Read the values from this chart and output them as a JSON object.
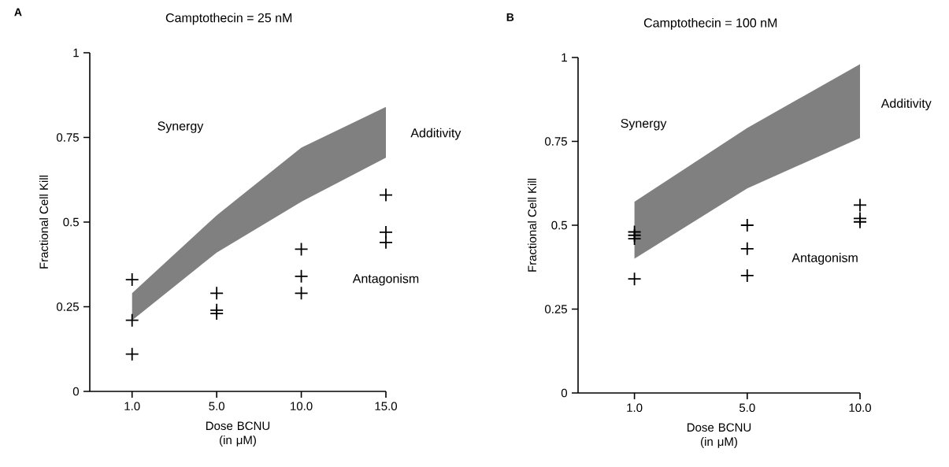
{
  "chart_data": [
    {
      "type": "scatter",
      "title": "A",
      "subtitle": "Camptothecin = 25 nM",
      "xlabel": "Dose BCNU (in μM)",
      "ylabel": "Fractional Cell Kill",
      "categories": [
        "1.0",
        "5.0",
        "10.0",
        "15.0"
      ],
      "ylim": [
        0,
        1
      ],
      "yticks": [
        0,
        0.25,
        0.5,
        0.75,
        1
      ],
      "grid": false,
      "series": [
        {
          "type": "line",
          "color": "#808080",
          "values": [
            null,
            null,
            null,
            null
          ],
          "lower": [
            0.21,
            0.41,
            0.56,
            0.69
          ],
          "upper": [
            0.29,
            0.52,
            0.72,
            0.84
          ]
        },
        {
          "type": "scatter",
          "marker": "cross",
          "color": "#000000",
          "x": [
            "1.0",
            "1.0",
            "1.0",
            "5.0",
            "5.0",
            "5.0",
            "10.0",
            "10.0",
            "10.0",
            "15.0",
            "15.0",
            "15.0"
          ],
          "values": [
            0.33,
            0.21,
            0.11,
            0.29,
            0.24,
            0.23,
            0.42,
            0.34,
            0.29,
            0.58,
            0.47,
            0.44
          ]
        }
      ],
      "annotations": [
        "Synergy",
        "Additivity",
        "Antagonism"
      ]
    },
    {
      "type": "scatter",
      "title": "B",
      "subtitle": "Camptothecin = 100 nM",
      "xlabel": "Dose BCNU (in μM)",
      "ylabel": "Fractional Cell Kill",
      "categories": [
        "1.0",
        "5.0",
        "10.0"
      ],
      "ylim": [
        0,
        1
      ],
      "yticks": [
        0,
        0.25,
        0.5,
        0.75,
        1
      ],
      "grid": false,
      "series": [
        {
          "type": "line",
          "color": "#808080",
          "values": [
            null,
            null,
            null
          ],
          "lower": [
            0.4,
            0.61,
            0.76
          ],
          "upper": [
            0.57,
            0.79,
            0.98
          ]
        },
        {
          "type": "scatter",
          "marker": "cross",
          "color": "#000000",
          "x": [
            "1.0",
            "1.0",
            "1.0",
            "1.0",
            "5.0",
            "5.0",
            "5.0",
            "10.0",
            "10.0",
            "10.0"
          ],
          "values": [
            0.48,
            0.47,
            0.46,
            0.34,
            0.5,
            0.43,
            0.35,
            0.56,
            0.52,
            0.51
          ]
        }
      ],
      "annotations": [
        "Synergy",
        "Additivity",
        "Antagonism"
      ]
    }
  ]
}
